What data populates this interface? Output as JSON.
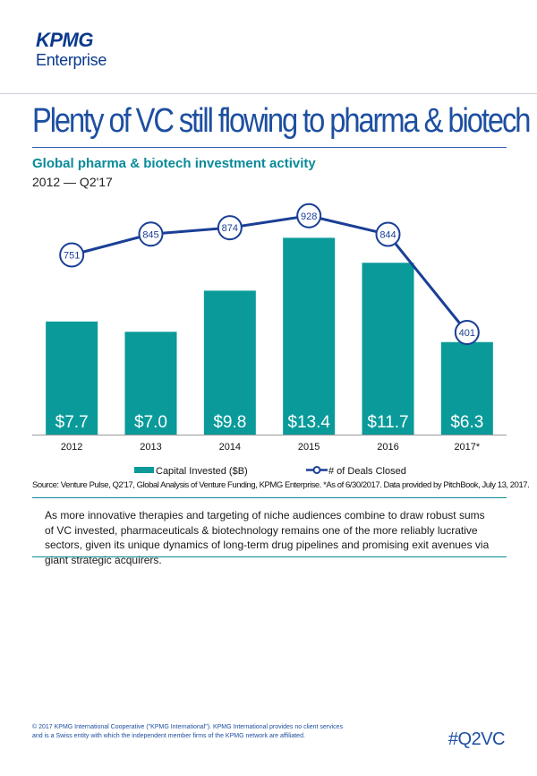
{
  "brand": {
    "logo_text": "KPMG",
    "sub_text": "Enterprise",
    "color": "#0a3a8c"
  },
  "headline": "Plenty of VC still flowing to pharma & biotech",
  "subtitle": "Global pharma & biotech investment activity",
  "period": "2012 — Q2'17",
  "chart_data": {
    "type": "bar",
    "title": "Global pharma & biotech investment activity",
    "subtitle": "2012 — Q2'17",
    "categories": [
      "2012",
      "2013",
      "2014",
      "2015",
      "2016",
      "2017*"
    ],
    "series": [
      {
        "name": "Capital Invested ($B)",
        "type": "bar",
        "values": [
          7.7,
          7.0,
          9.8,
          13.4,
          11.7,
          6.3
        ],
        "labels": [
          "$7.7",
          "$7.0",
          "$9.8",
          "$13.4",
          "$11.7",
          "$6.3"
        ],
        "color": "#0a9a9a"
      },
      {
        "name": "# of Deals Closed",
        "type": "line",
        "values": [
          751,
          845,
          874,
          928,
          844,
          401
        ],
        "color": "#1a3f96"
      }
    ],
    "bar_axis_range": [
      0,
      14.4
    ],
    "line_axis_range": [
      0,
      1000
    ],
    "legend_position": "bottom",
    "grid": false
  },
  "source": "Source: Venture Pulse, Q2'17, Global Analysis of Venture Funding, KPMG Enterprise. *As of 6/30/2017. Data provided by PitchBook, July 13, 2017.",
  "body_text": "As more innovative therapies and targeting of niche audiences combine to draw robust sums of VC invested, pharmaceuticals & biotechnology remains one of the more reliably lucrative sectors, given its unique dynamics of long-term drug pipelines and promising exit avenues via giant strategic acquirers.",
  "footer": {
    "copyright": "© 2017 KPMG International Cooperative (\"KPMG International\"). KPMG International provides no client services and is a Swiss entity with which the independent member firms of the KPMG network are affiliated.",
    "hashtag": "#Q2VC"
  }
}
